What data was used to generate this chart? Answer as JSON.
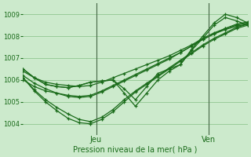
{
  "xlabel": "Pression niveau de la mer( hPa )",
  "background_color": "#cceacc",
  "grid_color": "#99cc99",
  "line_color": "#1a6b1a",
  "ylim": [
    1003.5,
    1009.5
  ],
  "yticks": [
    1004,
    1005,
    1006,
    1007,
    1008,
    1009
  ],
  "xlim": [
    0,
    20
  ],
  "jeu_x": 6.5,
  "ven_x": 16.5,
  "series": [
    {
      "x": [
        0,
        1,
        2,
        3,
        4,
        5,
        6,
        7,
        8,
        9,
        10,
        11,
        12,
        13,
        14,
        15,
        16,
        17,
        18,
        19,
        20
      ],
      "y": [
        1006.4,
        1006.1,
        1005.9,
        1005.8,
        1005.75,
        1005.7,
        1005.75,
        1005.9,
        1006.1,
        1006.3,
        1006.5,
        1006.7,
        1006.9,
        1007.1,
        1007.35,
        1007.6,
        1007.9,
        1008.15,
        1008.35,
        1008.5,
        1008.6
      ]
    },
    {
      "x": [
        0,
        1,
        2,
        3,
        4,
        5,
        6,
        7,
        8,
        9,
        10,
        11,
        12,
        13,
        14,
        15,
        16,
        17,
        18,
        19,
        20
      ],
      "y": [
        1006.0,
        1005.7,
        1005.5,
        1005.4,
        1005.3,
        1005.25,
        1005.3,
        1005.5,
        1005.75,
        1006.0,
        1006.25,
        1006.5,
        1006.75,
        1007.0,
        1007.25,
        1007.55,
        1007.85,
        1008.1,
        1008.3,
        1008.45,
        1008.55
      ]
    },
    {
      "x": [
        0,
        1,
        2,
        3,
        4,
        5,
        6,
        7,
        8,
        9,
        10,
        11,
        12,
        13,
        14,
        15,
        16,
        17,
        18,
        19,
        20
      ],
      "y": [
        1006.1,
        1005.55,
        1005.1,
        1004.75,
        1004.45,
        1004.2,
        1004.1,
        1004.3,
        1004.65,
        1005.1,
        1005.5,
        1005.85,
        1006.2,
        1006.55,
        1006.9,
        1007.25,
        1007.6,
        1007.9,
        1008.15,
        1008.4,
        1008.55
      ]
    },
    {
      "x": [
        0,
        1,
        2,
        3,
        4,
        5,
        6,
        7,
        8,
        9,
        10,
        11,
        12,
        13,
        14,
        15,
        16,
        17,
        18,
        19,
        20
      ],
      "y": [
        1006.1,
        1005.5,
        1005.0,
        1004.6,
        1004.25,
        1004.05,
        1004.0,
        1004.2,
        1004.55,
        1005.0,
        1005.45,
        1005.8,
        1006.15,
        1006.5,
        1006.85,
        1007.2,
        1007.55,
        1007.85,
        1008.1,
        1008.35,
        1008.5
      ]
    },
    {
      "x": [
        0,
        1,
        2,
        3,
        4,
        5,
        6,
        7,
        8,
        9,
        10,
        11,
        12,
        13,
        14,
        15,
        16,
        17,
        18,
        19,
        20
      ],
      "y": [
        1006.2,
        1005.85,
        1005.6,
        1005.4,
        1005.25,
        1005.2,
        1005.25,
        1005.45,
        1005.7,
        1005.95,
        1006.2,
        1006.45,
        1006.7,
        1006.95,
        1007.25,
        1007.55,
        1007.85,
        1008.1,
        1008.35,
        1008.55,
        1008.65
      ]
    },
    {
      "x": [
        0,
        1,
        2,
        3,
        4,
        5,
        6,
        7,
        8,
        9,
        10,
        11,
        12,
        13,
        14,
        15,
        16,
        17,
        18,
        19,
        20
      ],
      "y": [
        1006.5,
        1006.1,
        1005.8,
        1005.7,
        1005.65,
        1005.75,
        1005.9,
        1005.95,
        1006.0,
        1005.6,
        1005.1,
        1005.7,
        1006.3,
        1006.5,
        1006.7,
        1007.4,
        1008.0,
        1008.6,
        1009.0,
        1008.85,
        1008.6
      ]
    },
    {
      "x": [
        0,
        1,
        2,
        3,
        4,
        5,
        6,
        7,
        8,
        9,
        10,
        11,
        12,
        13,
        14,
        15,
        16,
        17,
        18,
        19,
        20
      ],
      "y": [
        1006.5,
        1006.1,
        1005.8,
        1005.7,
        1005.65,
        1005.75,
        1005.9,
        1005.95,
        1006.0,
        1005.4,
        1004.8,
        1005.4,
        1006.0,
        1006.4,
        1006.7,
        1007.35,
        1007.9,
        1008.5,
        1008.85,
        1008.7,
        1008.5
      ]
    }
  ]
}
